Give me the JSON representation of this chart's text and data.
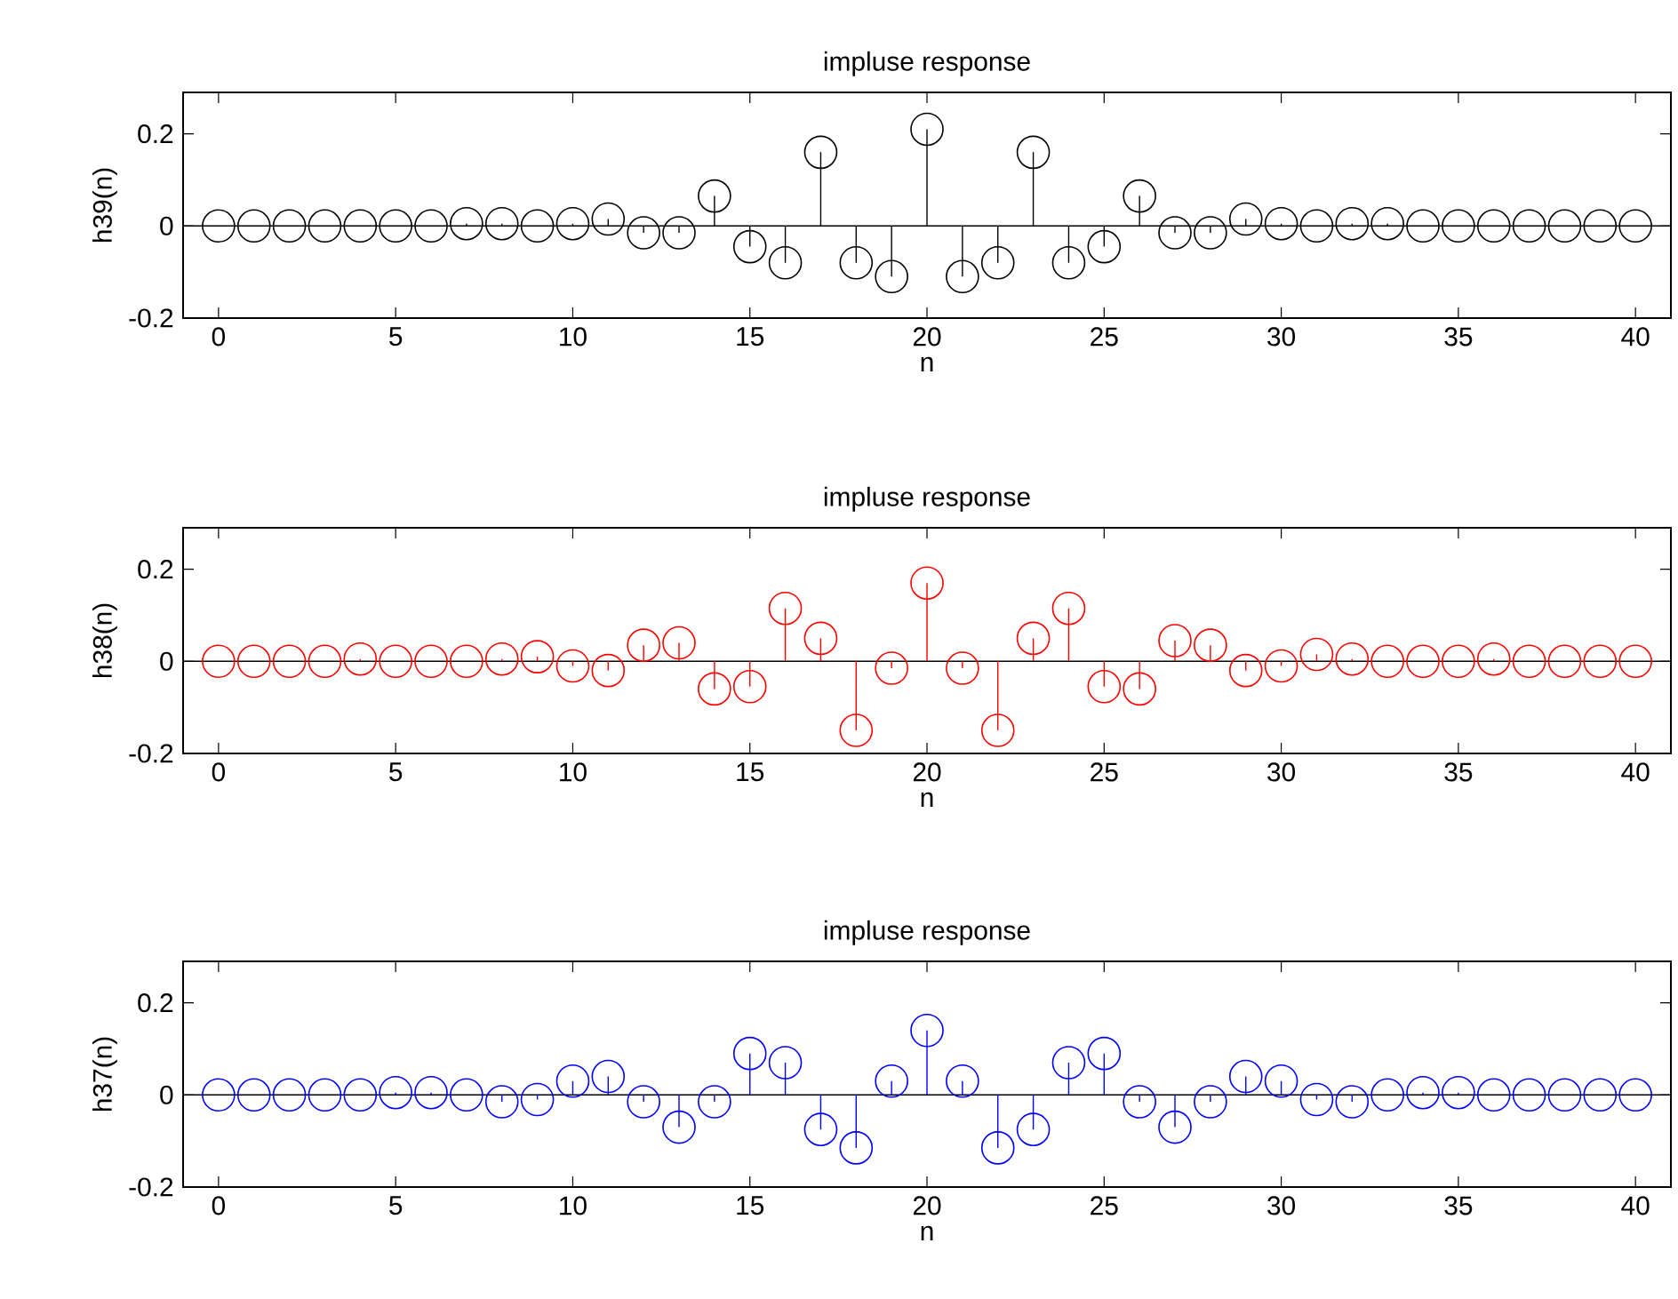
{
  "chart_data": [
    {
      "type": "lollipop",
      "title": "impluse response",
      "xlabel": "n",
      "ylabel": "h39(n)",
      "color": "#000000",
      "marker": "circle",
      "x": [
        0,
        1,
        2,
        3,
        4,
        5,
        6,
        7,
        8,
        9,
        10,
        11,
        12,
        13,
        14,
        15,
        16,
        17,
        18,
        19,
        20,
        21,
        22,
        23,
        24,
        25,
        26,
        27,
        28,
        29,
        30,
        31,
        32,
        33,
        34,
        35,
        36,
        37,
        38,
        39,
        40
      ],
      "values": [
        0,
        0,
        0,
        0,
        0,
        0,
        0,
        0.005,
        0.005,
        0,
        0.005,
        0.015,
        -0.015,
        -0.015,
        0.065,
        -0.045,
        -0.08,
        0.16,
        -0.08,
        -0.11,
        0.21,
        -0.11,
        -0.08,
        0.16,
        -0.08,
        -0.045,
        0.065,
        -0.015,
        -0.015,
        0.015,
        0.005,
        0,
        0.005,
        0.005,
        0,
        0,
        0,
        0,
        0,
        0,
        0
      ],
      "xlim": [
        -1,
        41
      ],
      "ylim": [
        -0.2,
        0.29
      ],
      "xticks": [
        0,
        5,
        10,
        15,
        20,
        25,
        30,
        35,
        40
      ],
      "yticks": [
        -0.2,
        0,
        0.2
      ]
    },
    {
      "type": "lollipop",
      "title": "impluse response",
      "xlabel": "n",
      "ylabel": "h38(n)",
      "color": "#ff0000",
      "marker": "circle",
      "x": [
        0,
        1,
        2,
        3,
        4,
        5,
        6,
        7,
        8,
        9,
        10,
        11,
        12,
        13,
        14,
        15,
        16,
        17,
        18,
        19,
        20,
        21,
        22,
        23,
        24,
        25,
        26,
        27,
        28,
        29,
        30,
        31,
        32,
        33,
        34,
        35,
        36,
        37,
        38,
        39,
        40
      ],
      "values": [
        0,
        0,
        0,
        0,
        0.005,
        0,
        0,
        0,
        0.005,
        0.01,
        -0.01,
        -0.02,
        0.035,
        0.04,
        -0.06,
        -0.055,
        0.115,
        0.05,
        -0.15,
        -0.015,
        0.17,
        -0.015,
        -0.15,
        0.05,
        0.115,
        -0.055,
        -0.06,
        0.045,
        0.035,
        -0.02,
        -0.01,
        0.015,
        0.005,
        0,
        0,
        0,
        0.005,
        0,
        0,
        0,
        0
      ],
      "xlim": [
        -1,
        41
      ],
      "ylim": [
        -0.2,
        0.29
      ],
      "xticks": [
        0,
        5,
        10,
        15,
        20,
        25,
        30,
        35,
        40
      ],
      "yticks": [
        -0.2,
        0,
        0.2
      ]
    },
    {
      "type": "lollipop",
      "title": "impluse response",
      "xlabel": "n",
      "ylabel": "h37(n)",
      "color": "#0000ff",
      "marker": "circle",
      "x": [
        0,
        1,
        2,
        3,
        4,
        5,
        6,
        7,
        8,
        9,
        10,
        11,
        12,
        13,
        14,
        15,
        16,
        17,
        18,
        19,
        20,
        21,
        22,
        23,
        24,
        25,
        26,
        27,
        28,
        29,
        30,
        31,
        32,
        33,
        34,
        35,
        36,
        37,
        38,
        39,
        40
      ],
      "values": [
        0,
        0,
        0,
        0,
        0,
        0.005,
        0.005,
        0,
        -0.015,
        -0.01,
        0.03,
        0.04,
        -0.015,
        -0.07,
        -0.015,
        0.09,
        0.07,
        -0.075,
        -0.115,
        0.03,
        0.14,
        0.03,
        -0.115,
        -0.075,
        0.07,
        0.09,
        -0.015,
        -0.07,
        -0.015,
        0.04,
        0.03,
        -0.01,
        -0.015,
        0,
        0.005,
        0.005,
        0,
        0,
        0,
        0,
        0
      ],
      "xlim": [
        -1,
        41
      ],
      "ylim": [
        -0.2,
        0.29
      ],
      "xticks": [
        0,
        5,
        10,
        15,
        20,
        25,
        30,
        35,
        40
      ],
      "yticks": [
        -0.2,
        0,
        0.2
      ]
    }
  ]
}
